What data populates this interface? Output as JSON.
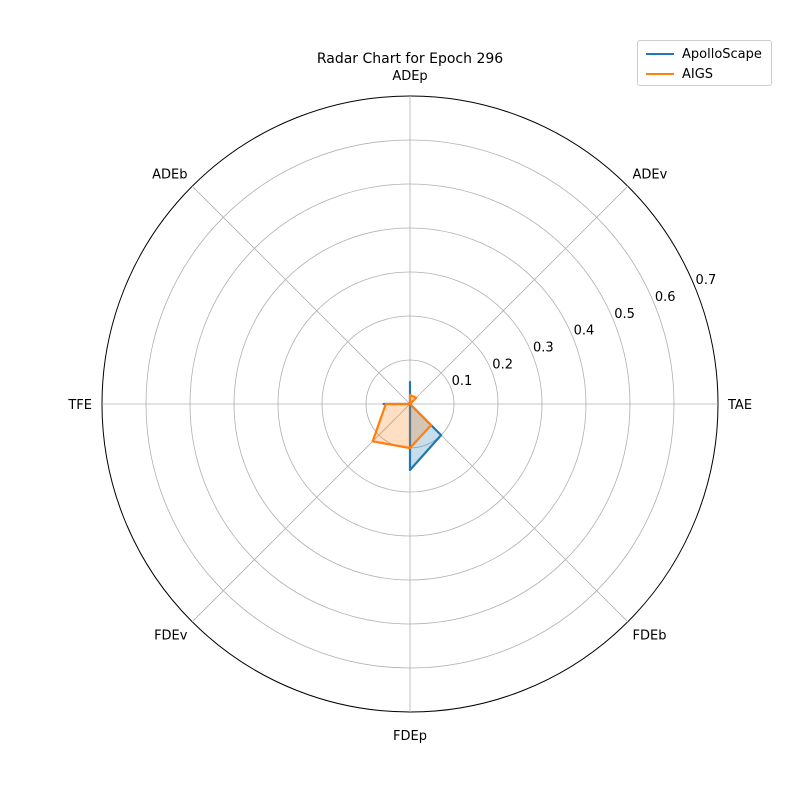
{
  "chart_data": {
    "type": "radar",
    "title": "Radar Chart for Epoch 296",
    "axes": [
      "TAE",
      "ADEv",
      "ADEp",
      "ADEb",
      "TFE",
      "FDEv",
      "FDEp",
      "FDEb"
    ],
    "rlim": [
      0,
      0.7
    ],
    "radial_ticks": [
      0.1,
      0.2,
      0.3,
      0.4,
      0.5,
      0.6,
      0.7
    ],
    "radial_tick_labels": [
      "0.1",
      "0.2",
      "0.3",
      "0.4",
      "0.5",
      "0.6",
      "0.7"
    ],
    "grid": true,
    "legend_position": "top-right",
    "series": [
      {
        "name": "ApolloScape",
        "color": "#1f77b4",
        "values": [
          0.0,
          0.0,
          0.05,
          0.0,
          0.06,
          0.0,
          0.15,
          0.1
        ]
      },
      {
        "name": "AIGS",
        "color": "#ff7f0e",
        "values": [
          0.0,
          0.02,
          0.02,
          0.0,
          0.055,
          0.12,
          0.1,
          0.068
        ]
      }
    ]
  }
}
